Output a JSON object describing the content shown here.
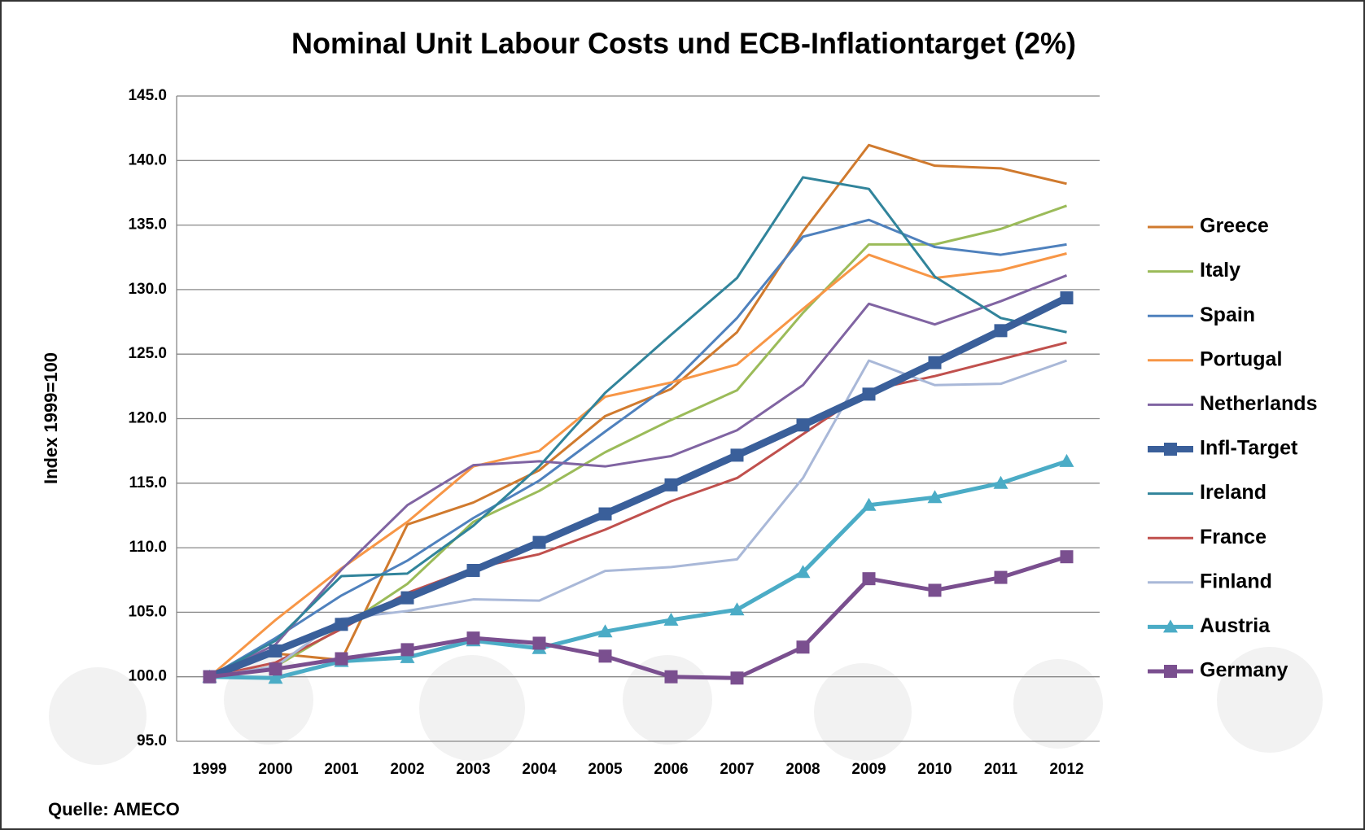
{
  "chart_data": {
    "type": "line",
    "title": "Nominal Unit Labour Costs und ECB-Inflationtarget (2%)",
    "y_label": "Index 1999=100",
    "source": "Quelle: AMECO",
    "categories": [
      "1999",
      "2000",
      "2001",
      "2002",
      "2003",
      "2004",
      "2005",
      "2006",
      "2007",
      "2008",
      "2009",
      "2010",
      "2011",
      "2012"
    ],
    "ylim": [
      95,
      145
    ],
    "yticks": [
      {
        "value": 95,
        "label": "95.0"
      },
      {
        "value": 100,
        "label": "100.0"
      },
      {
        "value": 105,
        "label": "105.0"
      },
      {
        "value": 110,
        "label": "110.0"
      },
      {
        "value": 115,
        "label": "115.0"
      },
      {
        "value": 120,
        "label": "120.0"
      },
      {
        "value": 125,
        "label": "125.0"
      },
      {
        "value": 130,
        "label": "130.0"
      },
      {
        "value": 135,
        "label": "135.0"
      },
      {
        "value": 140,
        "label": "140.0"
      },
      {
        "value": 145,
        "label": "145.0"
      }
    ],
    "grid": true,
    "legend": "right",
    "series": [
      {
        "name": "Greece",
        "color": "#d07a2e",
        "width": 3,
        "values": [
          100,
          101.8,
          101.3,
          111.8,
          113.5,
          116,
          120.2,
          122.3,
          126.7,
          134.5,
          141.2,
          139.6,
          139.4,
          138.2
        ]
      },
      {
        "name": "Italy",
        "color": "#9bbb59",
        "width": 3,
        "values": [
          100,
          100.8,
          103.8,
          107.2,
          112,
          114.4,
          117.4,
          119.9,
          122.2,
          128.2,
          133.5,
          133.5,
          134.7,
          136.5
        ]
      },
      {
        "name": "Spain",
        "color": "#4f81bd",
        "width": 3,
        "values": [
          100,
          103,
          106.3,
          109,
          112.3,
          115.2,
          119,
          122.7,
          127.8,
          134.1,
          135.4,
          133.3,
          132.7,
          133.5
        ]
      },
      {
        "name": "Portugal",
        "color": "#f79646",
        "width": 3,
        "values": [
          100,
          104.4,
          108.4,
          112,
          116.3,
          117.5,
          121.7,
          122.8,
          124.2,
          128.5,
          132.7,
          130.9,
          131.5,
          132.8
        ]
      },
      {
        "name": "Netherlands",
        "color": "#8064a2",
        "width": 3,
        "values": [
          100,
          102.5,
          108.3,
          113.3,
          116.4,
          116.7,
          116.3,
          117.1,
          119.1,
          122.6,
          128.9,
          127.3,
          129.1,
          131.1
        ]
      },
      {
        "name": "Infl-Target",
        "color": "#3a5f9a",
        "width": 9,
        "marker": "square",
        "values": [
          100,
          102,
          104.06,
          106.12,
          108.24,
          110.41,
          112.62,
          114.87,
          117.17,
          119.51,
          121.9,
          124.34,
          126.82,
          129.36
        ]
      },
      {
        "name": "Ireland",
        "color": "#31849b",
        "width": 3,
        "values": [
          100,
          102.8,
          107.8,
          108,
          111.7,
          116.3,
          122,
          126.5,
          130.9,
          138.7,
          137.8,
          131,
          127.8,
          126.7
        ]
      },
      {
        "name": "France",
        "color": "#c0504d",
        "width": 3,
        "values": [
          100,
          101.1,
          103.7,
          106.5,
          108.4,
          109.5,
          111.4,
          113.6,
          115.4,
          118.8,
          122.2,
          123.3,
          124.6,
          125.9
        ]
      },
      {
        "name": "Finland",
        "color": "#a9b8d8",
        "width": 3,
        "values": [
          100,
          100.8,
          104.5,
          105.1,
          106,
          105.9,
          108.2,
          108.5,
          109.1,
          115.4,
          124.5,
          122.6,
          122.7,
          124.5
        ]
      },
      {
        "name": "Austria",
        "color": "#4bacc6",
        "width": 5,
        "marker": "triangle",
        "values": [
          100,
          99.9,
          101.2,
          101.5,
          102.8,
          102.2,
          103.5,
          104.4,
          105.2,
          108.1,
          113.3,
          113.9,
          115,
          116.7
        ]
      },
      {
        "name": "Germany",
        "color": "#7a4f8f",
        "width": 5,
        "marker": "square",
        "values": [
          100,
          100.6,
          101.4,
          102.1,
          103,
          102.6,
          101.6,
          100,
          99.9,
          102.3,
          107.6,
          106.7,
          107.7,
          109.3
        ]
      }
    ]
  }
}
